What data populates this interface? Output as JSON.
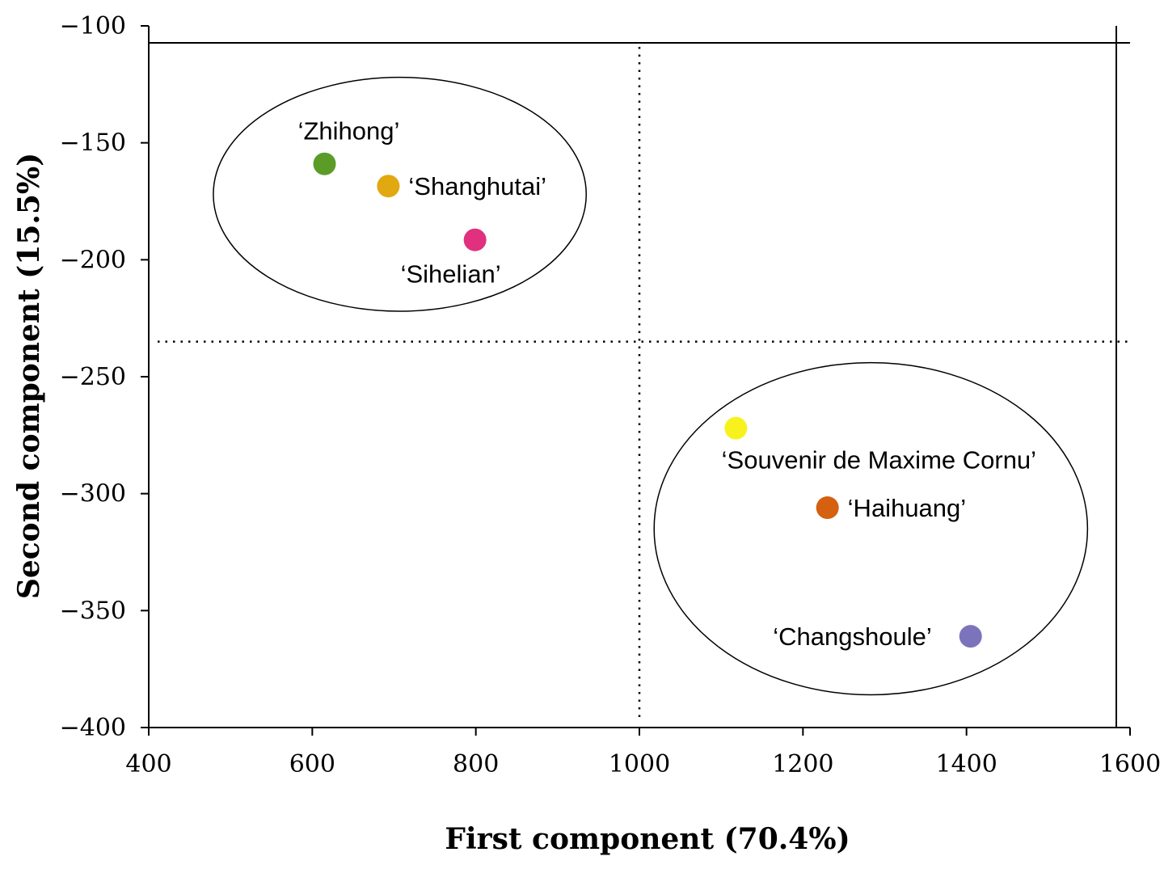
{
  "chart_data": {
    "type": "scatter",
    "title": "",
    "xlabel": "First component (70.4%)",
    "ylabel": "Second component (15.5%)",
    "xlim": [
      400,
      1600
    ],
    "ylim": [
      -400,
      -100
    ],
    "xticks": [
      400,
      600,
      800,
      1000,
      1200,
      1400,
      1600
    ],
    "yticks": [
      -100,
      -150,
      -200,
      -250,
      -300,
      -350,
      -400
    ],
    "ytick_labels": [
      "−100",
      "−150",
      "−200",
      "−250",
      "−300",
      "−350",
      "−400"
    ],
    "grid": false,
    "reference_lines": {
      "x": 1000,
      "y": -235
    },
    "points": [
      {
        "name": "‘Zhihong’",
        "x": 615,
        "y": -159,
        "color": "#5b9c28",
        "label_pos": "above"
      },
      {
        "name": "‘Shanghutai’",
        "x": 693,
        "y": -168.5,
        "color": "#e2a812",
        "label_pos": "right"
      },
      {
        "name": "‘Sihelian’",
        "x": 799,
        "y": -191.5,
        "color": "#e0307e",
        "label_pos": "below"
      },
      {
        "name": "‘Souvenir de Maxime Cornu’",
        "x": 1118,
        "y": -272,
        "color": "#f7f21e",
        "label_pos": "below"
      },
      {
        "name": "‘Haihuang’",
        "x": 1230,
        "y": -306,
        "color": "#d46010",
        "label_pos": "right"
      },
      {
        "name": "‘Changshoule’",
        "x": 1405,
        "y": -361,
        "color": "#7b74bd",
        "label_pos": "left"
      }
    ],
    "clusters": [
      {
        "members": [
          "‘Zhihong’",
          "‘Shanghutai’",
          "‘Sihelian’"
        ],
        "cx": 707,
        "cy": -172,
        "rx": 228,
        "ry": 50
      },
      {
        "members": [
          "‘Souvenir de Maxime Cornu’",
          "‘Haihuang’",
          "‘Changshoule’"
        ],
        "cx": 1283,
        "cy": -315,
        "rx": 265,
        "ry": 71
      }
    ]
  }
}
